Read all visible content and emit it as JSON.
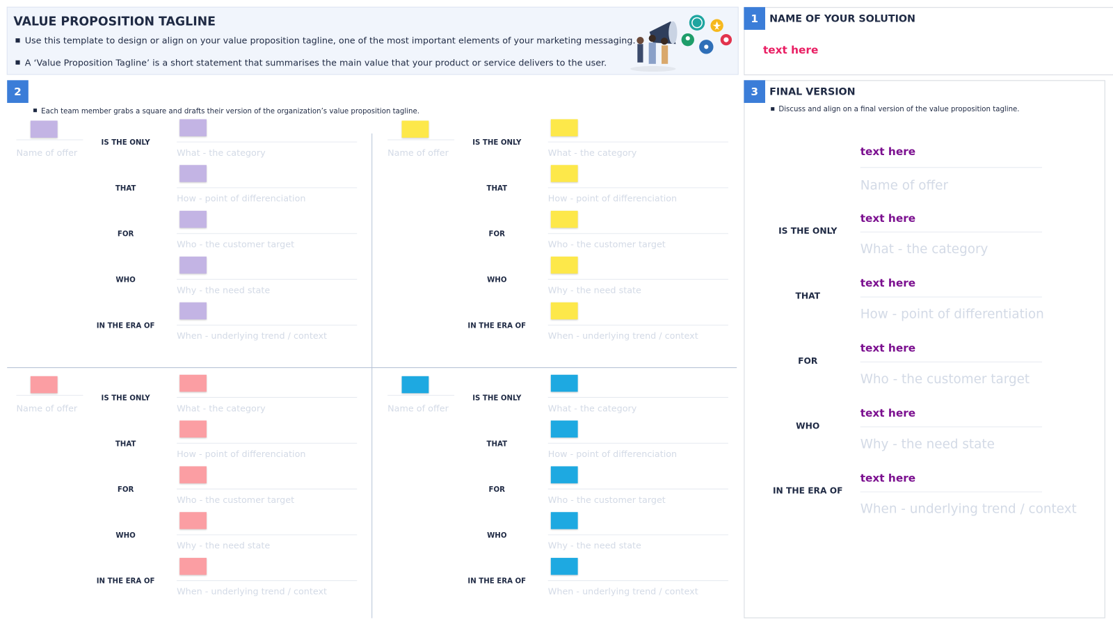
{
  "header": {
    "title": "VALUE PROPOSITION TAGLINE",
    "bullets": [
      "Use this template to design or align on your value proposition tagline, one of the most important elements of your marketing messaging.",
      "A ‘Value Proposition Tagline’ is a short statement that summarises the main value that your product or service delivers to the user."
    ]
  },
  "solution": {
    "number": "1",
    "title": "NAME OF YOUR SOLUTION",
    "text": "text here"
  },
  "drafts": {
    "number": "2",
    "instruction": "Each team member grabs a square and drafts their version of the organization’s value proposition tagline.",
    "quadrants": [
      {
        "color": "#c3b4e4",
        "offer": "Name of offer",
        "rows": [
          {
            "connector": "IS THE ONLY",
            "prompt": "What - the category"
          },
          {
            "connector": "THAT",
            "prompt": "How - point of differenciation"
          },
          {
            "connector": "FOR",
            "prompt": "Who - the customer target"
          },
          {
            "connector": "WHO",
            "prompt": "Why - the need state"
          },
          {
            "connector": "IN THE ERA OF",
            "prompt": "When - underlying trend / context"
          }
        ]
      },
      {
        "color": "#fde84a",
        "offer": "Name of offer",
        "rows": [
          {
            "connector": "IS THE ONLY",
            "prompt": "What - the category"
          },
          {
            "connector": "THAT",
            "prompt": "How - point of differenciation"
          },
          {
            "connector": "FOR",
            "prompt": "Who - the customer target"
          },
          {
            "connector": "WHO",
            "prompt": "Why - the need state"
          },
          {
            "connector": "IN THE ERA OF",
            "prompt": "When - underlying trend / context"
          }
        ]
      },
      {
        "color": "#fb9ea3",
        "offer": "Name of offer",
        "rows": [
          {
            "connector": "IS THE ONLY",
            "prompt": "What - the category"
          },
          {
            "connector": "THAT",
            "prompt": "How - point of differenciation"
          },
          {
            "connector": "FOR",
            "prompt": "Who - the customer target"
          },
          {
            "connector": "WHO",
            "prompt": "Why - the need state"
          },
          {
            "connector": "IN THE ERA OF",
            "prompt": "When - underlying trend / context"
          }
        ]
      },
      {
        "color": "#1ea9e1",
        "offer": "Name of offer",
        "rows": [
          {
            "connector": "IS THE ONLY",
            "prompt": "What - the category"
          },
          {
            "connector": "THAT",
            "prompt": "How - point of differenciation"
          },
          {
            "connector": "FOR",
            "prompt": "Who - the customer target"
          },
          {
            "connector": "WHO",
            "prompt": "Why - the need state"
          },
          {
            "connector": "IN THE ERA OF",
            "prompt": "When - underlying trend / context"
          }
        ]
      }
    ]
  },
  "final": {
    "number": "3",
    "title": "FINAL VERSION",
    "instruction": "Discuss and align on a final version of the value proposition tagline.",
    "offer": {
      "text": "text here",
      "prompt": "Name of offer"
    },
    "rows": [
      {
        "connector": "IS THE ONLY",
        "text": "text here",
        "prompt": "What - the category"
      },
      {
        "connector": "THAT",
        "text": "text here",
        "prompt": "How - point of differentiation"
      },
      {
        "connector": "FOR",
        "text": "text here",
        "prompt": "Who - the customer target"
      },
      {
        "connector": "WHO",
        "text": "text here",
        "prompt": "Why - the need state"
      },
      {
        "connector": "IN THE ERA OF",
        "text": "text here",
        "prompt": "When - underlying trend / context"
      }
    ]
  }
}
